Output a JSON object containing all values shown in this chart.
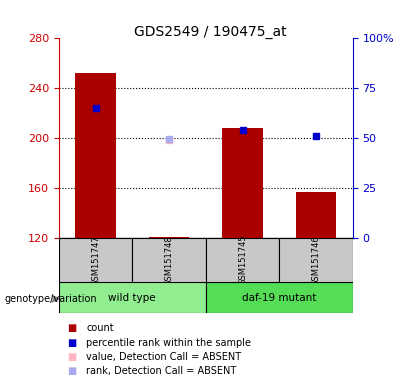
{
  "title": "GDS2549 / 190475_at",
  "samples": [
    "GSM151747",
    "GSM151748",
    "GSM151745",
    "GSM151746"
  ],
  "bar_values": [
    252,
    121,
    208,
    157
  ],
  "bar_color": "#AA0000",
  "bar_bottom": 120,
  "perc_vals": [
    65,
    null,
    54,
    51
  ],
  "percentile_color": "#0000CC",
  "absent_value_perc": [
    null,
    49,
    null,
    null
  ],
  "absent_value_color": "#FFB6C1",
  "absent_rank_perc": [
    null,
    49.5,
    null,
    null
  ],
  "absent_rank_color": "#AAAAEE",
  "ylim_left": [
    120,
    280
  ],
  "ylim_right": [
    0,
    100
  ],
  "yticks_left": [
    120,
    160,
    200,
    240,
    280
  ],
  "yticks_right": [
    0,
    25,
    50,
    75,
    100
  ],
  "ytick_labels_right": [
    "0",
    "25",
    "50",
    "75",
    "100%"
  ],
  "left_axis_color": "#CC0000",
  "right_axis_color": "#0000CC",
  "group_label": "genotype/variation",
  "wt_color": "#90EE90",
  "daf_color": "#55DD55",
  "legend_items": [
    {
      "label": "count",
      "color": "#AA0000"
    },
    {
      "label": "percentile rank within the sample",
      "color": "#0000CC"
    },
    {
      "label": "value, Detection Call = ABSENT",
      "color": "#FFB6C1"
    },
    {
      "label": "rank, Detection Call = ABSENT",
      "color": "#AAAAEE"
    }
  ]
}
